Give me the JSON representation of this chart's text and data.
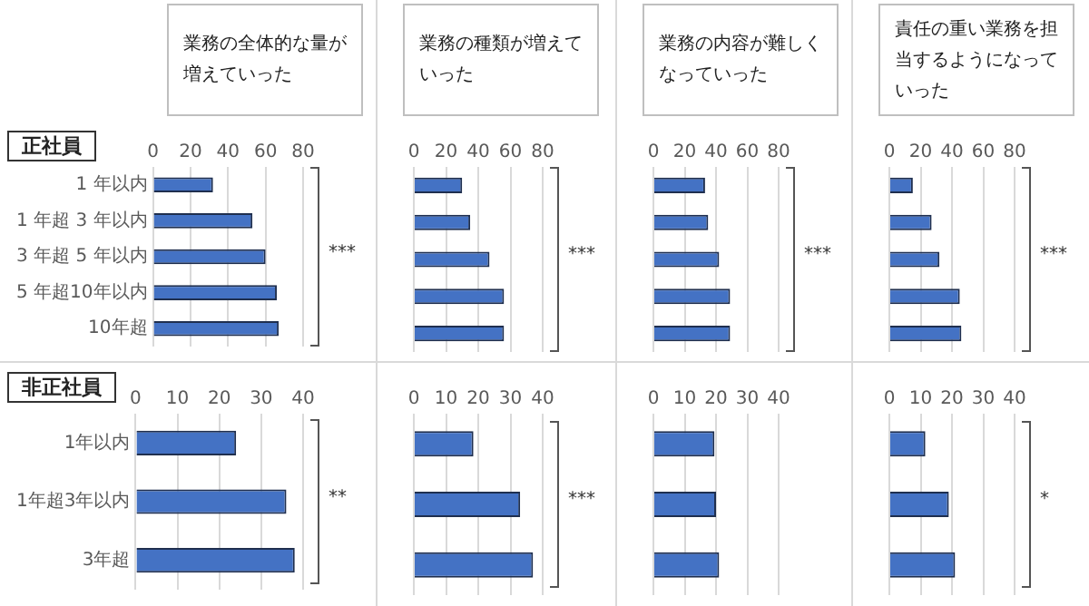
{
  "chart_data": [
    {
      "type": "bar",
      "orientation": "horizontal",
      "title": "業務の全体的な量が増えていった",
      "ylabel": "正社員",
      "categories": [
        "1 年以内",
        "1 年超 3 年以内",
        "3 年超 5 年以内",
        "5 年超10年以内",
        "10年超"
      ],
      "values": [
        32,
        53,
        60,
        66,
        67
      ],
      "color": "#4472c4",
      "xlim": [
        0,
        80
      ],
      "xticks": [
        0,
        20,
        40,
        60,
        80
      ],
      "grid": "x",
      "annotations": [
        "***"
      ]
    },
    {
      "type": "bar",
      "orientation": "horizontal",
      "title": "業務の種類が増えていった",
      "categories": [
        null,
        null,
        null,
        null,
        null
      ],
      "values": [
        30,
        35,
        47,
        56,
        56
      ],
      "color": "#4472c4",
      "xlim": [
        0,
        80
      ],
      "xticks": [
        0,
        20,
        40,
        60,
        80
      ],
      "grid": "x",
      "tick_labels": "x",
      "annotations": [
        "***"
      ]
    },
    {
      "type": "bar",
      "orientation": "horizontal",
      "title": "業務の内容が難しくなっていった",
      "categories": [
        null,
        null,
        null,
        null,
        null
      ],
      "values": [
        33,
        35,
        42,
        49,
        49
      ],
      "color": "#4472c4",
      "xlim": [
        0,
        80
      ],
      "xticks": [
        0,
        20,
        40,
        60,
        80
      ],
      "grid": "x",
      "tick_labels": "x",
      "annotations": [
        "***"
      ]
    },
    {
      "type": "bar",
      "orientation": "horizontal",
      "title": "責任の重い業務を担当するようになっていった",
      "categories": [
        null,
        null,
        null,
        null,
        null
      ],
      "values": [
        15,
        27,
        32,
        45,
        46
      ],
      "color": "#4472c4",
      "xlim": [
        0,
        80
      ],
      "xticks": [
        0,
        20,
        40,
        60,
        80
      ],
      "grid": "x",
      "tick_labels": "x",
      "annotations": [
        "***"
      ]
    },
    {
      "type": "bar",
      "orientation": "horizontal",
      "ylabel": "非正社員",
      "categories": [
        "1年以内",
        "1年超3年以内",
        "3年超"
      ],
      "values": [
        24,
        36,
        38
      ],
      "color": "#4472c4",
      "xlim": [
        0,
        40
      ],
      "xticks": [
        0,
        10,
        20,
        30,
        40
      ],
      "grid": "x",
      "annotations": [
        "**"
      ]
    },
    {
      "type": "bar",
      "orientation": "horizontal",
      "categories": [
        null,
        null,
        null
      ],
      "values": [
        18.5,
        33,
        37
      ],
      "color": "#4472c4",
      "xlim": [
        0,
        40
      ],
      "xticks": [
        0,
        10,
        20,
        30,
        40
      ],
      "grid": "x",
      "tick_labels": "x",
      "annotations": [
        "***"
      ]
    },
    {
      "type": "bar",
      "orientation": "horizontal",
      "categories": [
        null,
        null,
        null
      ],
      "values": [
        19.5,
        20,
        21
      ],
      "color": "#4472c4",
      "xlim": [
        0,
        40
      ],
      "xticks": [
        0,
        10,
        20,
        30,
        40
      ],
      "grid": "x",
      "tick_labels": "x"
    },
    {
      "type": "bar",
      "orientation": "horizontal",
      "categories": [
        null,
        null,
        null
      ],
      "values": [
        11.5,
        19,
        21
      ],
      "color": "#4472c4",
      "xlim": [
        0,
        40
      ],
      "xticks": [
        0,
        10,
        20,
        30,
        40
      ],
      "grid": "x",
      "tick_labels": "x",
      "annotations": [
        "*"
      ]
    }
  ]
}
